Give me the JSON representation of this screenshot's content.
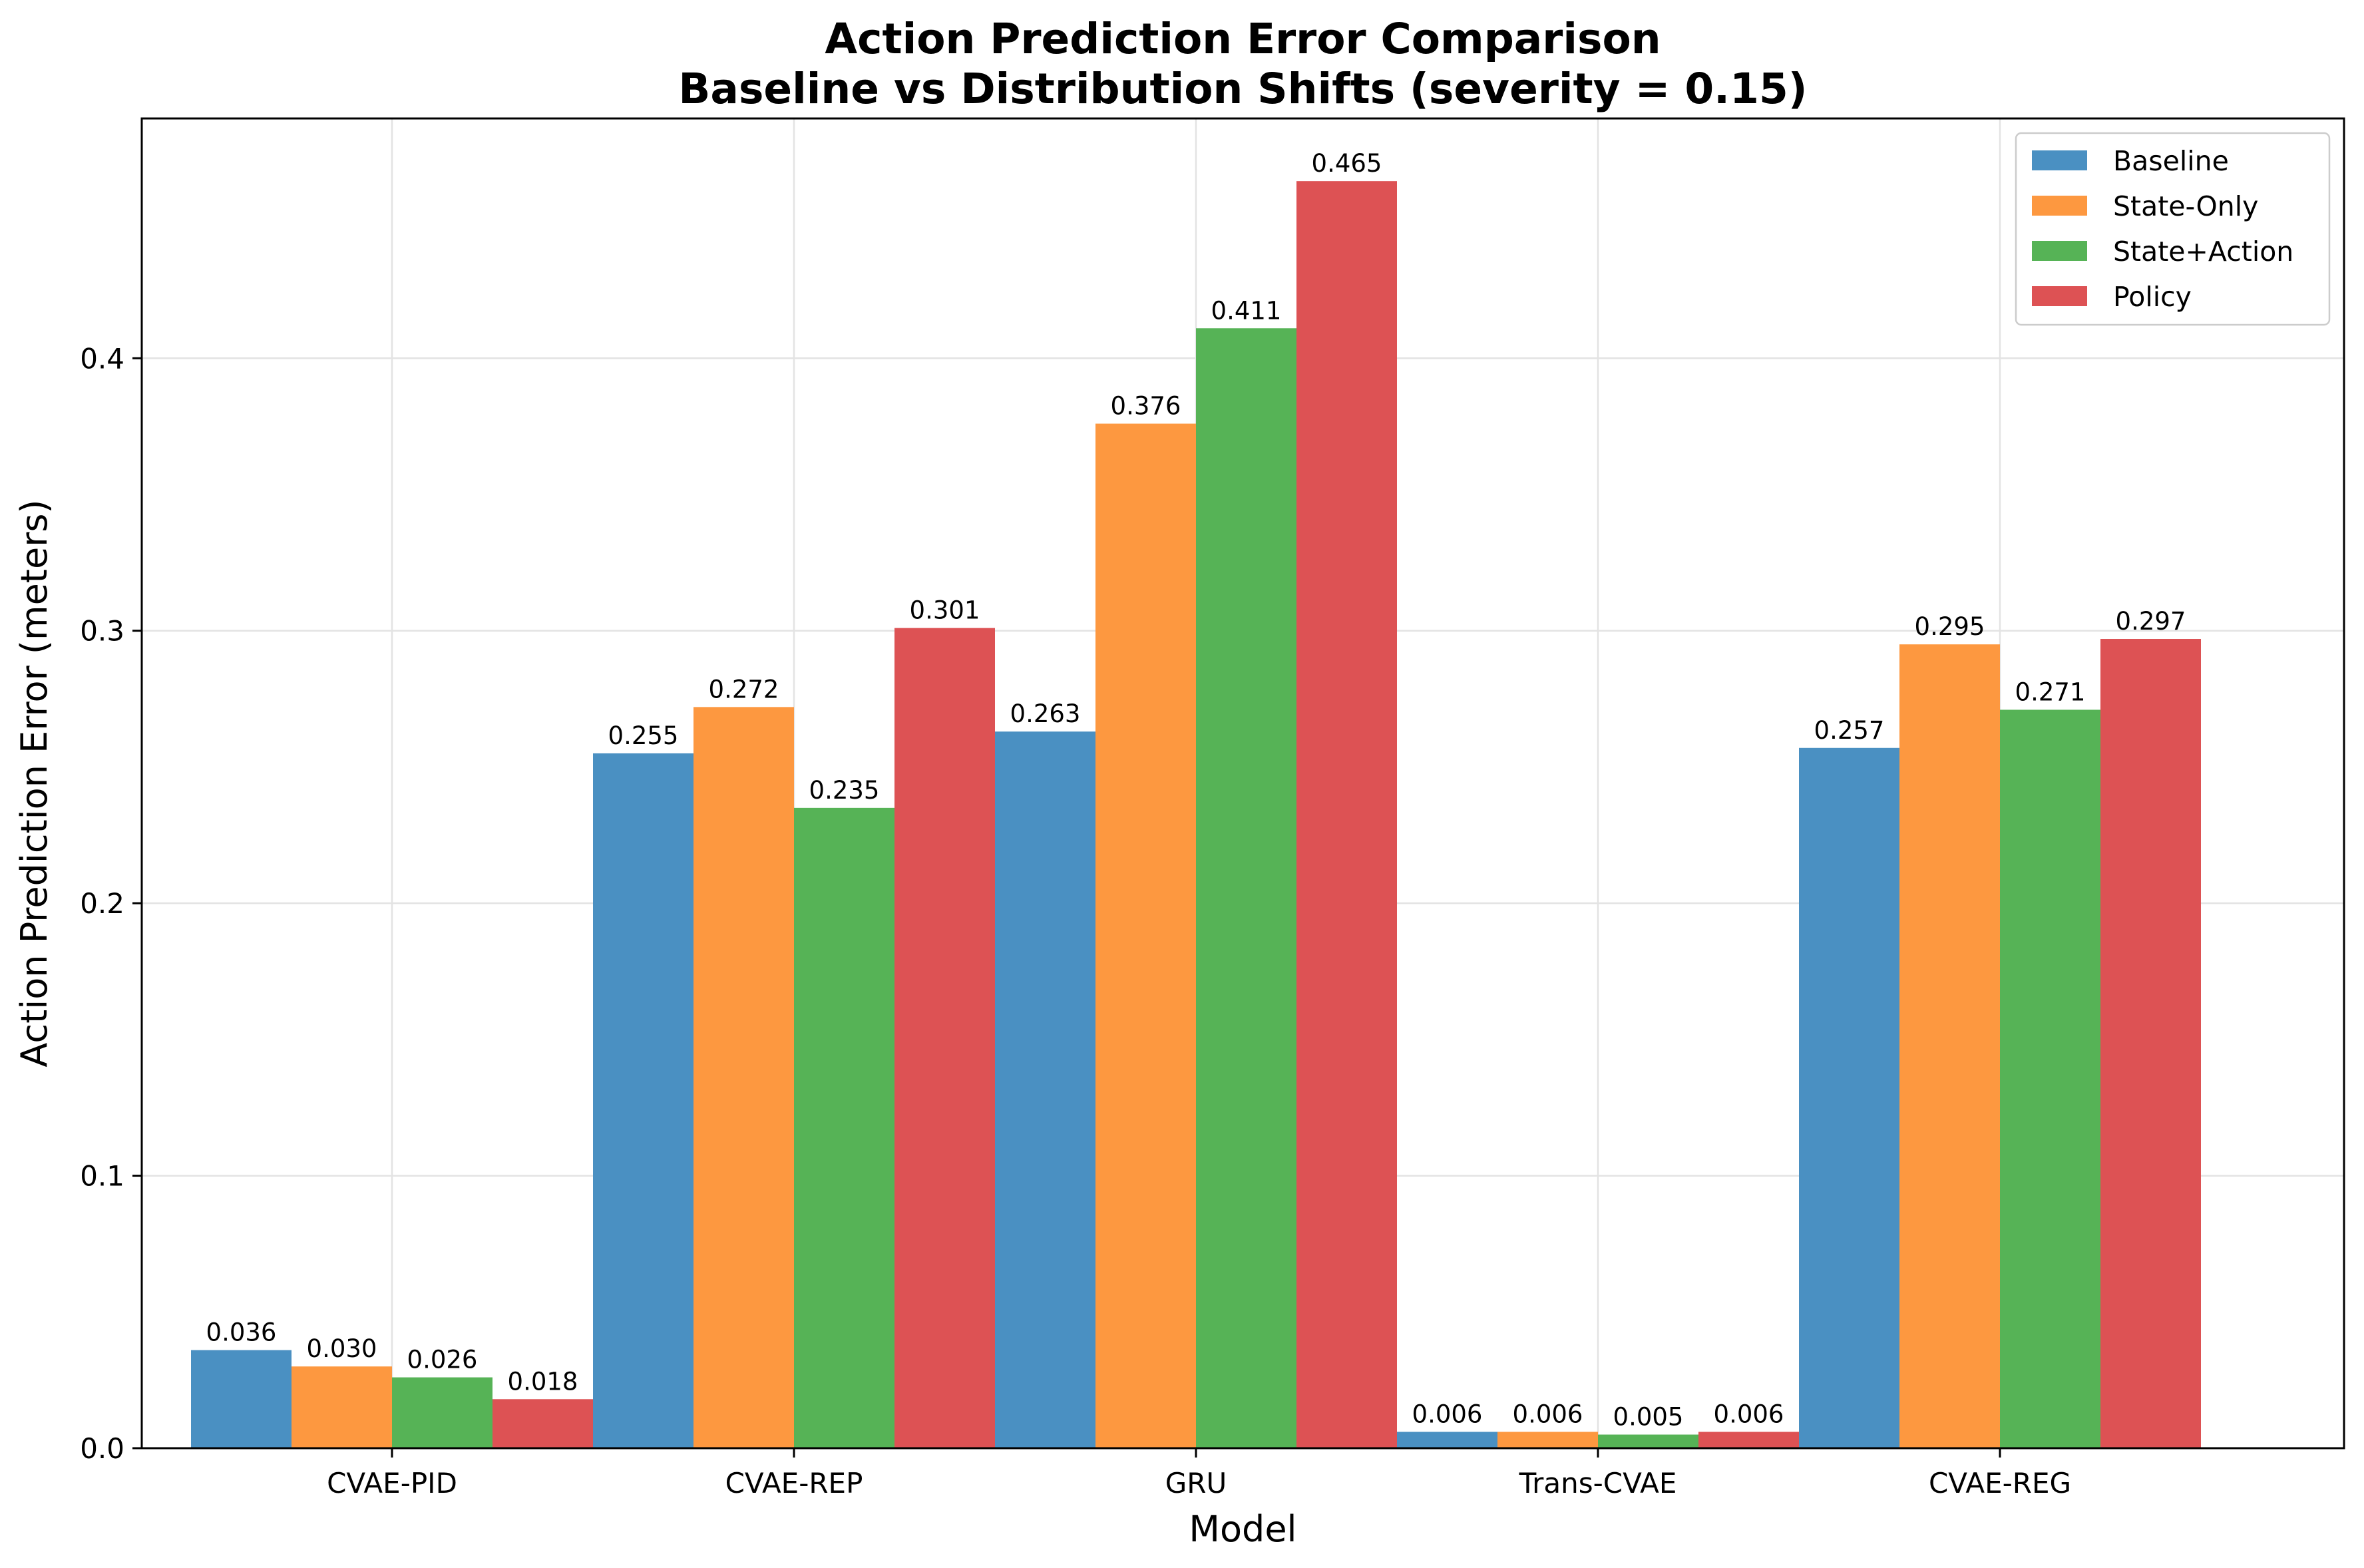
{
  "chart_data": {
    "type": "bar",
    "title": "Action Prediction Error Comparison",
    "subtitle": "Baseline vs Distribution Shifts (severity = 0.15)",
    "xlabel": "Model",
    "ylabel": "Action Prediction Error (meters)",
    "categories": [
      "CVAE-PID",
      "CVAE-REP",
      "GRU",
      "Trans-CVAE",
      "CVAE-REG"
    ],
    "series": [
      {
        "name": "Baseline",
        "color": "#4a90c2",
        "values": [
          0.036,
          0.255,
          0.263,
          0.006,
          0.257
        ],
        "labels": [
          "0.036",
          "0.255",
          "0.263",
          "0.006",
          "0.257"
        ]
      },
      {
        "name": "State-Only",
        "color": "#fd9840",
        "values": [
          0.03,
          0.272,
          0.376,
          0.006,
          0.295
        ],
        "labels": [
          "0.030",
          "0.272",
          "0.376",
          "0.006",
          "0.295"
        ]
      },
      {
        "name": "State+Action",
        "color": "#56b356",
        "values": [
          0.026,
          0.235,
          0.411,
          0.005,
          0.271
        ],
        "labels": [
          "0.026",
          "0.235",
          "0.411",
          "0.005",
          "0.271"
        ]
      },
      {
        "name": "Policy",
        "color": "#dd5254",
        "values": [
          0.018,
          0.301,
          0.465,
          0.006,
          0.297
        ],
        "labels": [
          "0.018",
          "0.301",
          "0.465",
          "0.006",
          "0.297"
        ]
      }
    ],
    "ylim": [
      0,
      0.488
    ],
    "yticks": [
      0.0,
      0.1,
      0.2,
      0.3,
      0.4
    ],
    "ytick_labels": [
      "0.0",
      "0.1",
      "0.2",
      "0.3",
      "0.4"
    ],
    "grid": true,
    "legend_position": "top-right"
  }
}
